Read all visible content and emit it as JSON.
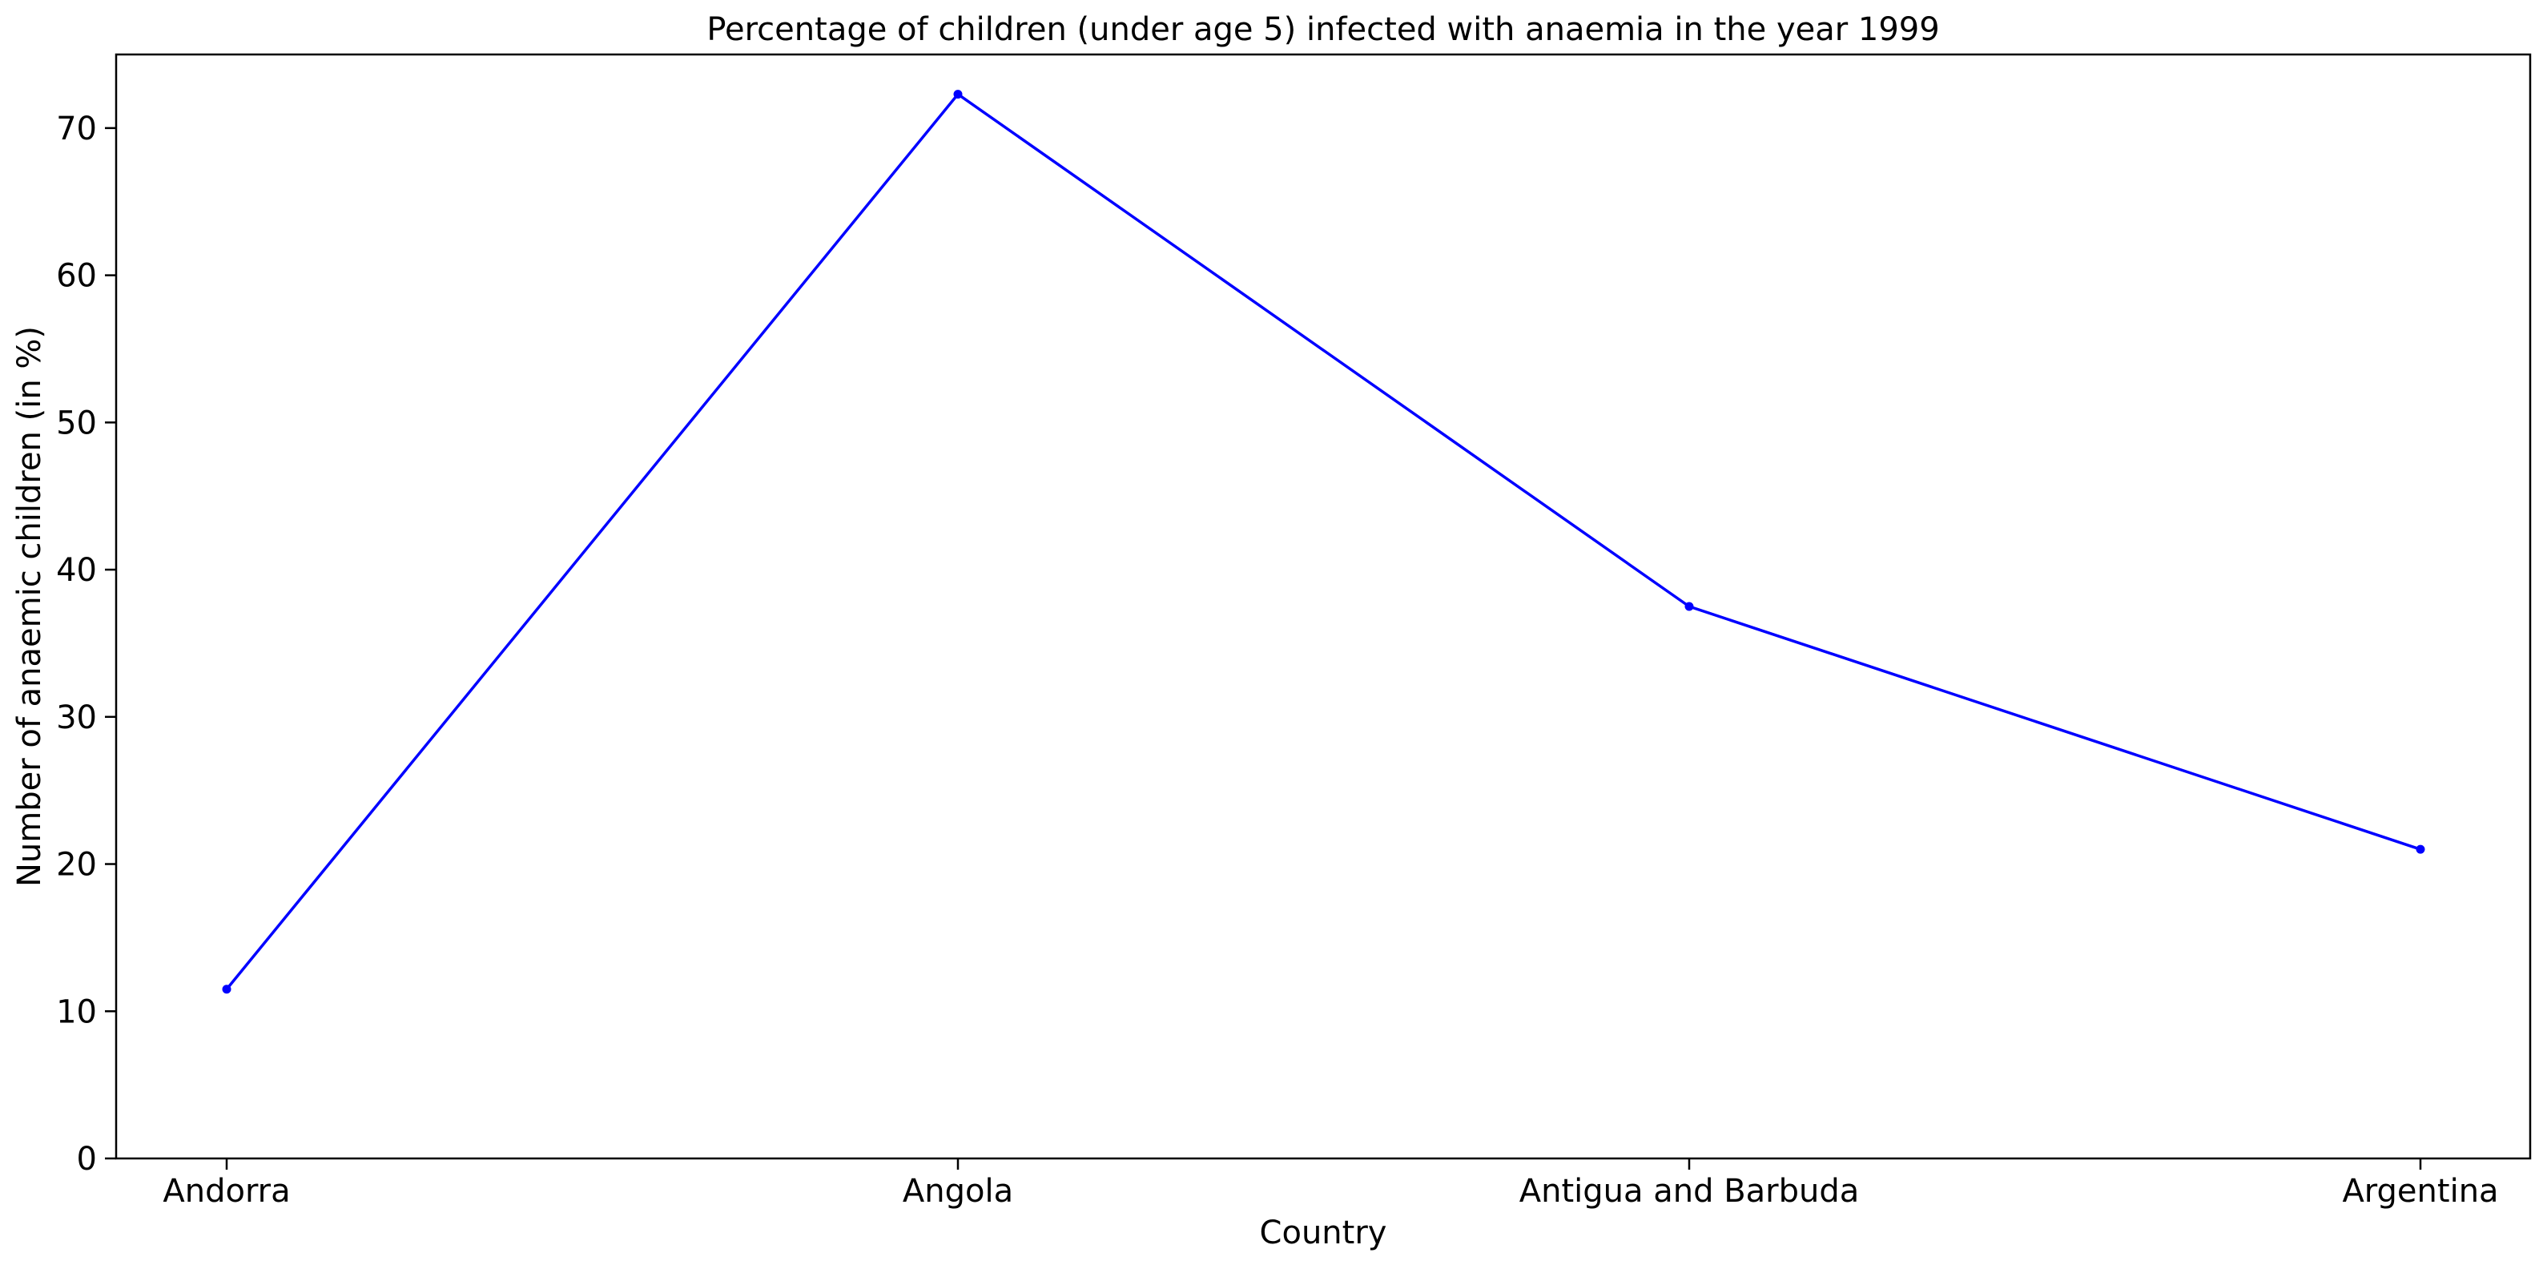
{
  "chart_data": {
    "type": "line",
    "title": "Percentage of children (under age 5) infected with anaemia in the year 1999",
    "xlabel": "Country",
    "ylabel": "Number of anaemic children (in %)",
    "categories": [
      "Andorra",
      "Angola",
      "Antigua and Barbuda",
      "Argentina"
    ],
    "series": [
      {
        "values": [
          11.5,
          72.3,
          37.5,
          21.0
        ],
        "color": "#0000ff",
        "marker": "dot"
      }
    ],
    "ylim": [
      0,
      75
    ],
    "yticks": [
      0,
      10,
      20,
      30,
      40,
      50,
      60,
      70
    ],
    "grid": false,
    "legend": "none"
  }
}
